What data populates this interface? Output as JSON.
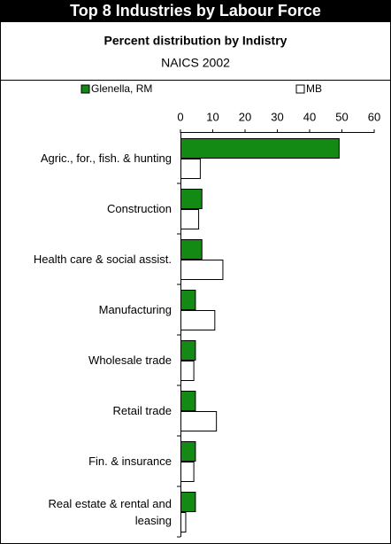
{
  "chart_data": {
    "type": "hbar",
    "title": "Top 8 Industries by Labour Force",
    "subtitle": "Percent distribution by Indistry",
    "note": "NAICS 2002",
    "categories": [
      "Agric., for., fish. & hunting",
      "Construction",
      "Health care & social assist.",
      "Manufacturing",
      "Wholesale trade",
      "Retail trade",
      "Fin. & insurance",
      "Real estate & rental and leasing"
    ],
    "series": [
      {
        "name": "Glenella, RM",
        "color": "#138a13",
        "values": [
          49,
          6.5,
          6.5,
          4.5,
          4.5,
          4.5,
          4.5,
          4.5
        ]
      },
      {
        "name": "MB",
        "color": "#ffffff",
        "values": [
          6,
          5.5,
          13,
          10.5,
          4,
          11,
          4,
          1.5
        ]
      }
    ],
    "xlim": [
      0,
      60
    ],
    "xticks": [
      0,
      10,
      20,
      30,
      40,
      50,
      60
    ]
  }
}
